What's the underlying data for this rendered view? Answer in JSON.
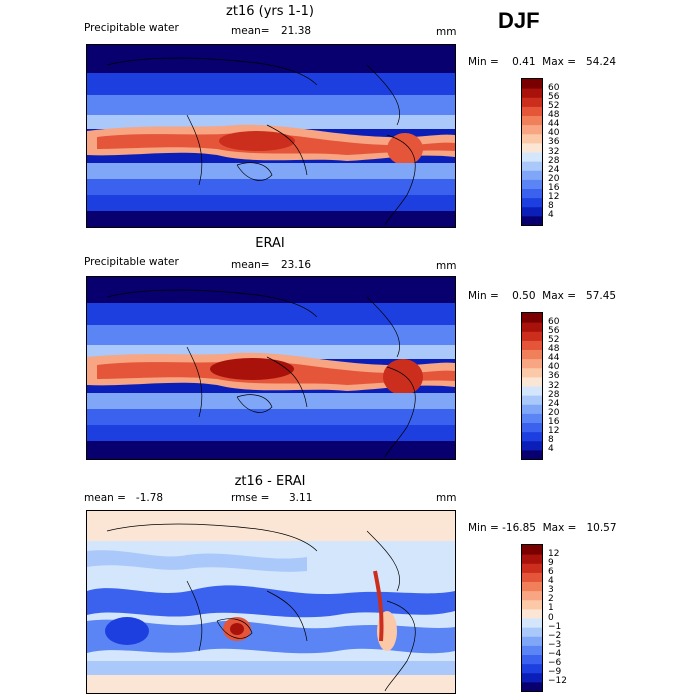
{
  "season_label": "DJF",
  "units": "mm",
  "panels": [
    {
      "title": "zt16 (yrs 1-1)",
      "left_label": "Precipitable water",
      "stat1_label": "mean=",
      "stat1_value": "21.38",
      "min_max": "Min =    0.41  Max =   54.24"
    },
    {
      "title": "ERAI",
      "left_label": "Precipitable water",
      "stat1_label": "mean=",
      "stat1_value": "23.16",
      "min_max": "Min =    0.50  Max =   57.45"
    },
    {
      "title": "zt16 - ERAI",
      "left_label": "mean =   -1.78",
      "stat1_label": "rmse =",
      "stat1_value": "3.11",
      "min_max": "Min = -16.85  Max =   10.57"
    }
  ],
  "chart_data": [
    {
      "type": "heatmap",
      "title": "zt16 (yrs 1-1)",
      "variable": "Precipitable water",
      "units": "mm",
      "mean": 21.38,
      "min": 0.41,
      "max": 54.24,
      "colorbar_levels": [
        "4",
        "8",
        "12",
        "16",
        "20",
        "24",
        "28",
        "32",
        "36",
        "40",
        "44",
        "48",
        "52",
        "56",
        "60"
      ],
      "colorbar_colors": [
        "#08006e",
        "#0b1fb8",
        "#1e3fe0",
        "#3a62ee",
        "#5b84f4",
        "#80a6f7",
        "#aac8fa",
        "#d4e6fb",
        "#fbe6d6",
        "#fbc8a8",
        "#f7a582",
        "#f0805a",
        "#e4553a",
        "#cb2e1c",
        "#a8120b",
        "#7a0000"
      ]
    },
    {
      "type": "heatmap",
      "title": "ERAI",
      "variable": "Precipitable water",
      "units": "mm",
      "mean": 23.16,
      "min": 0.5,
      "max": 57.45,
      "colorbar_levels": [
        "4",
        "8",
        "12",
        "16",
        "20",
        "24",
        "28",
        "32",
        "36",
        "40",
        "44",
        "48",
        "52",
        "56",
        "60"
      ],
      "colorbar_colors": [
        "#08006e",
        "#0b1fb8",
        "#1e3fe0",
        "#3a62ee",
        "#5b84f4",
        "#80a6f7",
        "#aac8fa",
        "#d4e6fb",
        "#fbe6d6",
        "#fbc8a8",
        "#f7a582",
        "#f0805a",
        "#e4553a",
        "#cb2e1c",
        "#a8120b",
        "#7a0000"
      ]
    },
    {
      "type": "heatmap",
      "title": "zt16 - ERAI",
      "units": "mm",
      "mean": -1.78,
      "rmse": 3.11,
      "min": -16.85,
      "max": 10.57,
      "colorbar_levels": [
        "−12",
        "−9",
        "−6",
        "−4",
        "−3",
        "−2",
        "−1",
        "0",
        "1",
        "2",
        "3",
        "4",
        "6",
        "9",
        "12"
      ],
      "colorbar_colors": [
        "#08006e",
        "#0b1fb8",
        "#1e3fe0",
        "#3a62ee",
        "#5b84f4",
        "#80a6f7",
        "#aac8fa",
        "#d4e6fb",
        "#fbe6d6",
        "#fbc8a8",
        "#f7a582",
        "#f0805a",
        "#e4553a",
        "#cb2e1c",
        "#a8120b",
        "#7a0000"
      ]
    }
  ]
}
